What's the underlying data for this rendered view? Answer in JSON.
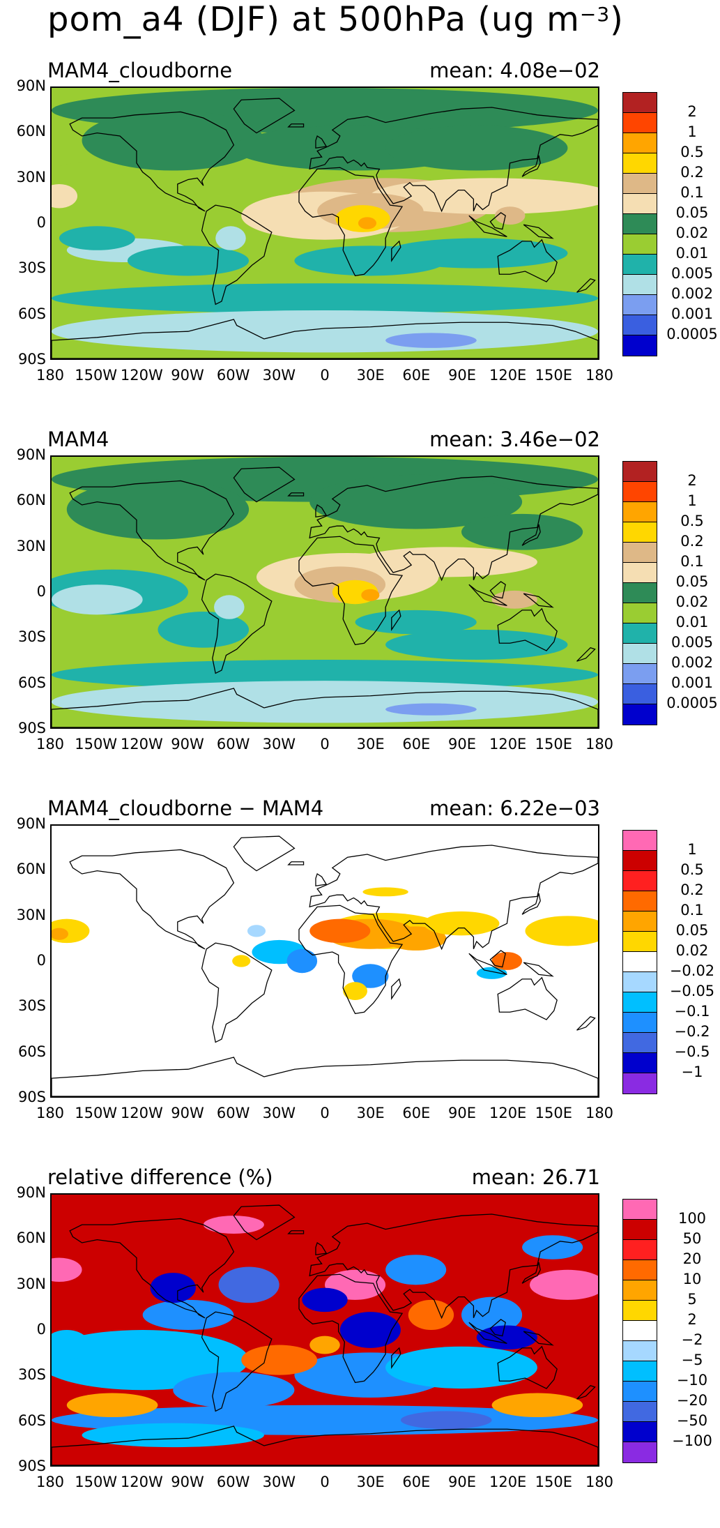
{
  "figure": {
    "title_main": "pom_a4 (DJF) at 500hPa (ug m",
    "title_sup": "−3",
    "title_end": ")"
  },
  "axes": {
    "lat_labels": [
      "90N",
      "60N",
      "30N",
      "0",
      "30S",
      "60S",
      "90S"
    ],
    "lon_labels": [
      "180",
      "150W",
      "120W",
      "90W",
      "60W",
      "30W",
      "0",
      "30E",
      "60E",
      "90E",
      "120E",
      "150E",
      "180"
    ]
  },
  "panels": [
    {
      "title": "MAM4_cloudborne",
      "mean": "mean: 4.08e−02",
      "levels": [
        "2",
        "1",
        "0.5",
        "0.2",
        "0.1",
        "0.05",
        "0.02",
        "0.01",
        "0.005",
        "0.002",
        "0.001",
        "0.0005"
      ],
      "colors": [
        "#b22222",
        "#ff4500",
        "#ffa500",
        "#ffd700",
        "#deb887",
        "#f5deb3",
        "#2e8b57",
        "#9acd32",
        "#20b2aa",
        "#b0e0e6",
        "#7b9ef0",
        "#3a5fe0",
        "#0000cd"
      ]
    },
    {
      "title": "MAM4",
      "mean": "mean: 3.46e−02",
      "levels": [
        "2",
        "1",
        "0.5",
        "0.2",
        "0.1",
        "0.05",
        "0.02",
        "0.01",
        "0.005",
        "0.002",
        "0.001",
        "0.0005"
      ],
      "colors": [
        "#b22222",
        "#ff4500",
        "#ffa500",
        "#ffd700",
        "#deb887",
        "#f5deb3",
        "#2e8b57",
        "#9acd32",
        "#20b2aa",
        "#b0e0e6",
        "#7b9ef0",
        "#3a5fe0",
        "#0000cd"
      ]
    },
    {
      "title": "MAM4_cloudborne − MAM4",
      "mean": "mean: 6.22e−03",
      "levels": [
        "1",
        "0.5",
        "0.2",
        "0.1",
        "0.05",
        "0.02",
        "−0.02",
        "−0.05",
        "−0.1",
        "−0.2",
        "−0.5",
        "−1"
      ],
      "colors": [
        "#ff69b4",
        "#cc0000",
        "#ff2020",
        "#ff6a00",
        "#ffa500",
        "#ffd700",
        "#ffffff",
        "#a6d8ff",
        "#00bfff",
        "#1e90ff",
        "#4169e1",
        "#0000cd",
        "#8a2be2"
      ]
    },
    {
      "title": "relative difference (%)",
      "mean": "mean: 26.71",
      "levels": [
        "100",
        "50",
        "20",
        "10",
        "5",
        "2",
        "−2",
        "−5",
        "−10",
        "−20",
        "−50",
        "−100"
      ],
      "colors": [
        "#ff69b4",
        "#cc0000",
        "#ff2020",
        "#ff6a00",
        "#ffa500",
        "#ffd700",
        "#ffffff",
        "#a6d8ff",
        "#00bfff",
        "#1e90ff",
        "#4169e1",
        "#0000cd",
        "#8a2be2"
      ]
    }
  ]
}
